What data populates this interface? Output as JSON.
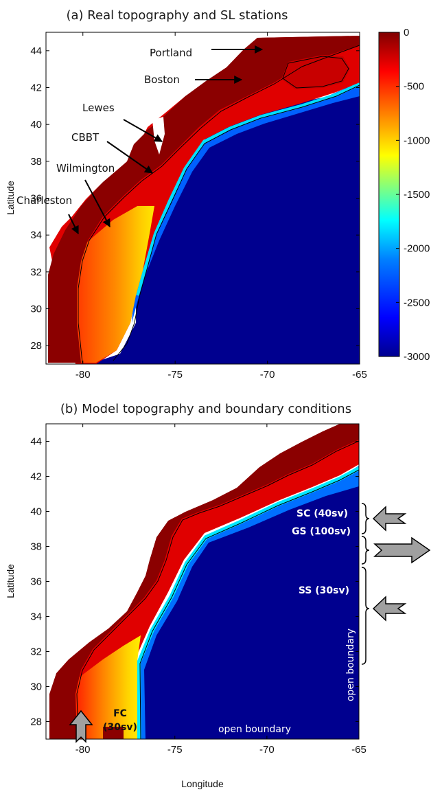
{
  "chart_data": [
    {
      "type": "heatmap",
      "title": "(a) Real topography and SL stations",
      "xlabel": "",
      "ylabel": "Latitude",
      "xlim": [
        -82,
        -65
      ],
      "ylim": [
        27,
        45
      ],
      "x_ticks": [
        "-80",
        "-75",
        "-70",
        "-65"
      ],
      "y_ticks": [
        "44",
        "42",
        "40",
        "38",
        "36",
        "34",
        "32",
        "30",
        "28"
      ],
      "colorbar": {
        "range": [
          -3000,
          0
        ],
        "ticks": [
          "0",
          "-500",
          "-1000",
          "-1500",
          "-2000",
          "-2500",
          "-3000"
        ],
        "colors": [
          "#00008f",
          "#0000ff",
          "#0080ff",
          "#00ffff",
          "#80ff80",
          "#ffff00",
          "#ff8000",
          "#ff0000",
          "#800000"
        ]
      },
      "stations": [
        {
          "name": "Portland",
          "lon": -70.2,
          "lat": 43.7
        },
        {
          "name": "Boston",
          "lon": -71.0,
          "lat": 42.4
        },
        {
          "name": "Lewes",
          "lon": -75.1,
          "lat": 38.8
        },
        {
          "name": "CBBT",
          "lon": -76.1,
          "lat": 37.0
        },
        {
          "name": "Wilmington",
          "lon": -77.9,
          "lat": 34.2
        },
        {
          "name": "Charleston",
          "lon": -79.9,
          "lat": 32.8
        }
      ]
    },
    {
      "type": "heatmap",
      "title": "(b) Model topography and boundary conditions",
      "xlabel": "Longitude",
      "ylabel": "Latitude",
      "xlim": [
        -82,
        -65
      ],
      "ylim": [
        27,
        45
      ],
      "x_ticks": [
        "-80",
        "-75",
        "-70",
        "-65"
      ],
      "y_ticks": [
        "44",
        "42",
        "40",
        "38",
        "36",
        "34",
        "32",
        "30",
        "28"
      ],
      "boundary_conditions": [
        {
          "label": "SC (40sv)",
          "direction": "inflow-west"
        },
        {
          "label": "GS (100sv)",
          "direction": "outflow-east"
        },
        {
          "label": "SS (30sv)",
          "direction": "inflow-west"
        },
        {
          "label": "FC",
          "label2": "(30sv)",
          "direction": "inflow-north"
        }
      ],
      "open_boundary_labels": [
        "open boundary",
        "open boundary"
      ]
    }
  ]
}
